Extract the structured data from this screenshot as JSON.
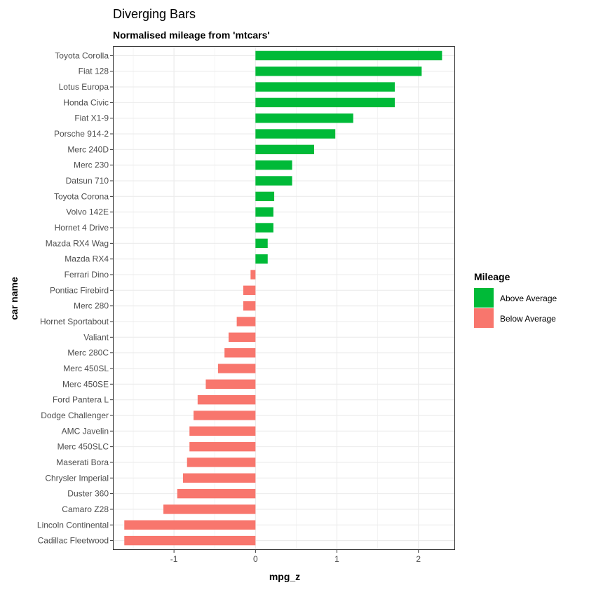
{
  "chart_data": {
    "type": "bar",
    "orientation": "horizontal",
    "title": "Diverging Bars",
    "subtitle": "Normalised mileage from 'mtcars'",
    "xlabel": "mpg_z",
    "ylabel": "car name",
    "xlim": [
      -1.75,
      2.45
    ],
    "xticks": [
      -1,
      0,
      1,
      2
    ],
    "grid": true,
    "legend": {
      "title": "Mileage",
      "position": "right",
      "entries": [
        {
          "label": "Above Average",
          "color": "#00BA38"
        },
        {
          "label": "Below Average",
          "color": "#F8766D"
        }
      ]
    },
    "colors": {
      "above": "#00BA38",
      "below": "#F8766D"
    },
    "categories": [
      "Toyota Corolla",
      "Fiat 128",
      "Lotus Europa",
      "Honda Civic",
      "Fiat X1-9",
      "Porsche 914-2",
      "Merc 240D",
      "Merc 230",
      "Datsun 710",
      "Toyota Corona",
      "Volvo 142E",
      "Hornet 4 Drive",
      "Mazda RX4 Wag",
      "Mazda RX4",
      "Ferrari Dino",
      "Pontiac Firebird",
      "Merc 280",
      "Hornet Sportabout",
      "Valiant",
      "Merc 280C",
      "Merc 450SL",
      "Merc 450SE",
      "Ford Pantera L",
      "Dodge Challenger",
      "AMC Javelin",
      "Merc 450SLC",
      "Maserati Bora",
      "Chrysler Imperial",
      "Duster 360",
      "Camaro Z28",
      "Lincoln Continental",
      "Cadillac Fleetwood"
    ],
    "values": [
      2.29,
      2.04,
      1.71,
      1.71,
      1.2,
      0.98,
      0.72,
      0.45,
      0.45,
      0.23,
      0.22,
      0.22,
      0.15,
      0.15,
      -0.06,
      -0.15,
      -0.15,
      -0.23,
      -0.33,
      -0.38,
      -0.46,
      -0.61,
      -0.71,
      -0.76,
      -0.81,
      -0.81,
      -0.84,
      -0.89,
      -0.96,
      -1.13,
      -1.61,
      -1.61
    ],
    "groups": [
      "Above Average",
      "Above Average",
      "Above Average",
      "Above Average",
      "Above Average",
      "Above Average",
      "Above Average",
      "Above Average",
      "Above Average",
      "Above Average",
      "Above Average",
      "Above Average",
      "Above Average",
      "Above Average",
      "Below Average",
      "Below Average",
      "Below Average",
      "Below Average",
      "Below Average",
      "Below Average",
      "Below Average",
      "Below Average",
      "Below Average",
      "Below Average",
      "Below Average",
      "Below Average",
      "Below Average",
      "Below Average",
      "Below Average",
      "Below Average",
      "Below Average",
      "Below Average"
    ]
  }
}
